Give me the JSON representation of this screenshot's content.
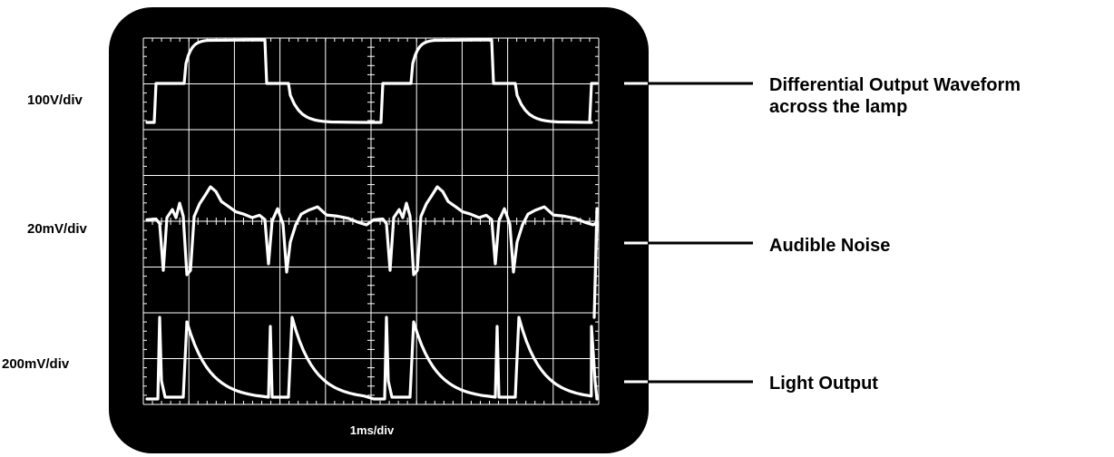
{
  "scale_labels": {
    "trace_1": "100V/div",
    "trace_2": "20mV/div",
    "trace_3": "200mV/div"
  },
  "time_base": "1ms/div",
  "trace_names": {
    "trace_1_line1": "Differential Output Waveform",
    "trace_1_line2": "across the lamp",
    "trace_2": "Audible Noise",
    "trace_3": "Light Output"
  },
  "colors": {
    "screen": "#000000",
    "trace": "#ffffff",
    "background": "#ffffff"
  }
}
